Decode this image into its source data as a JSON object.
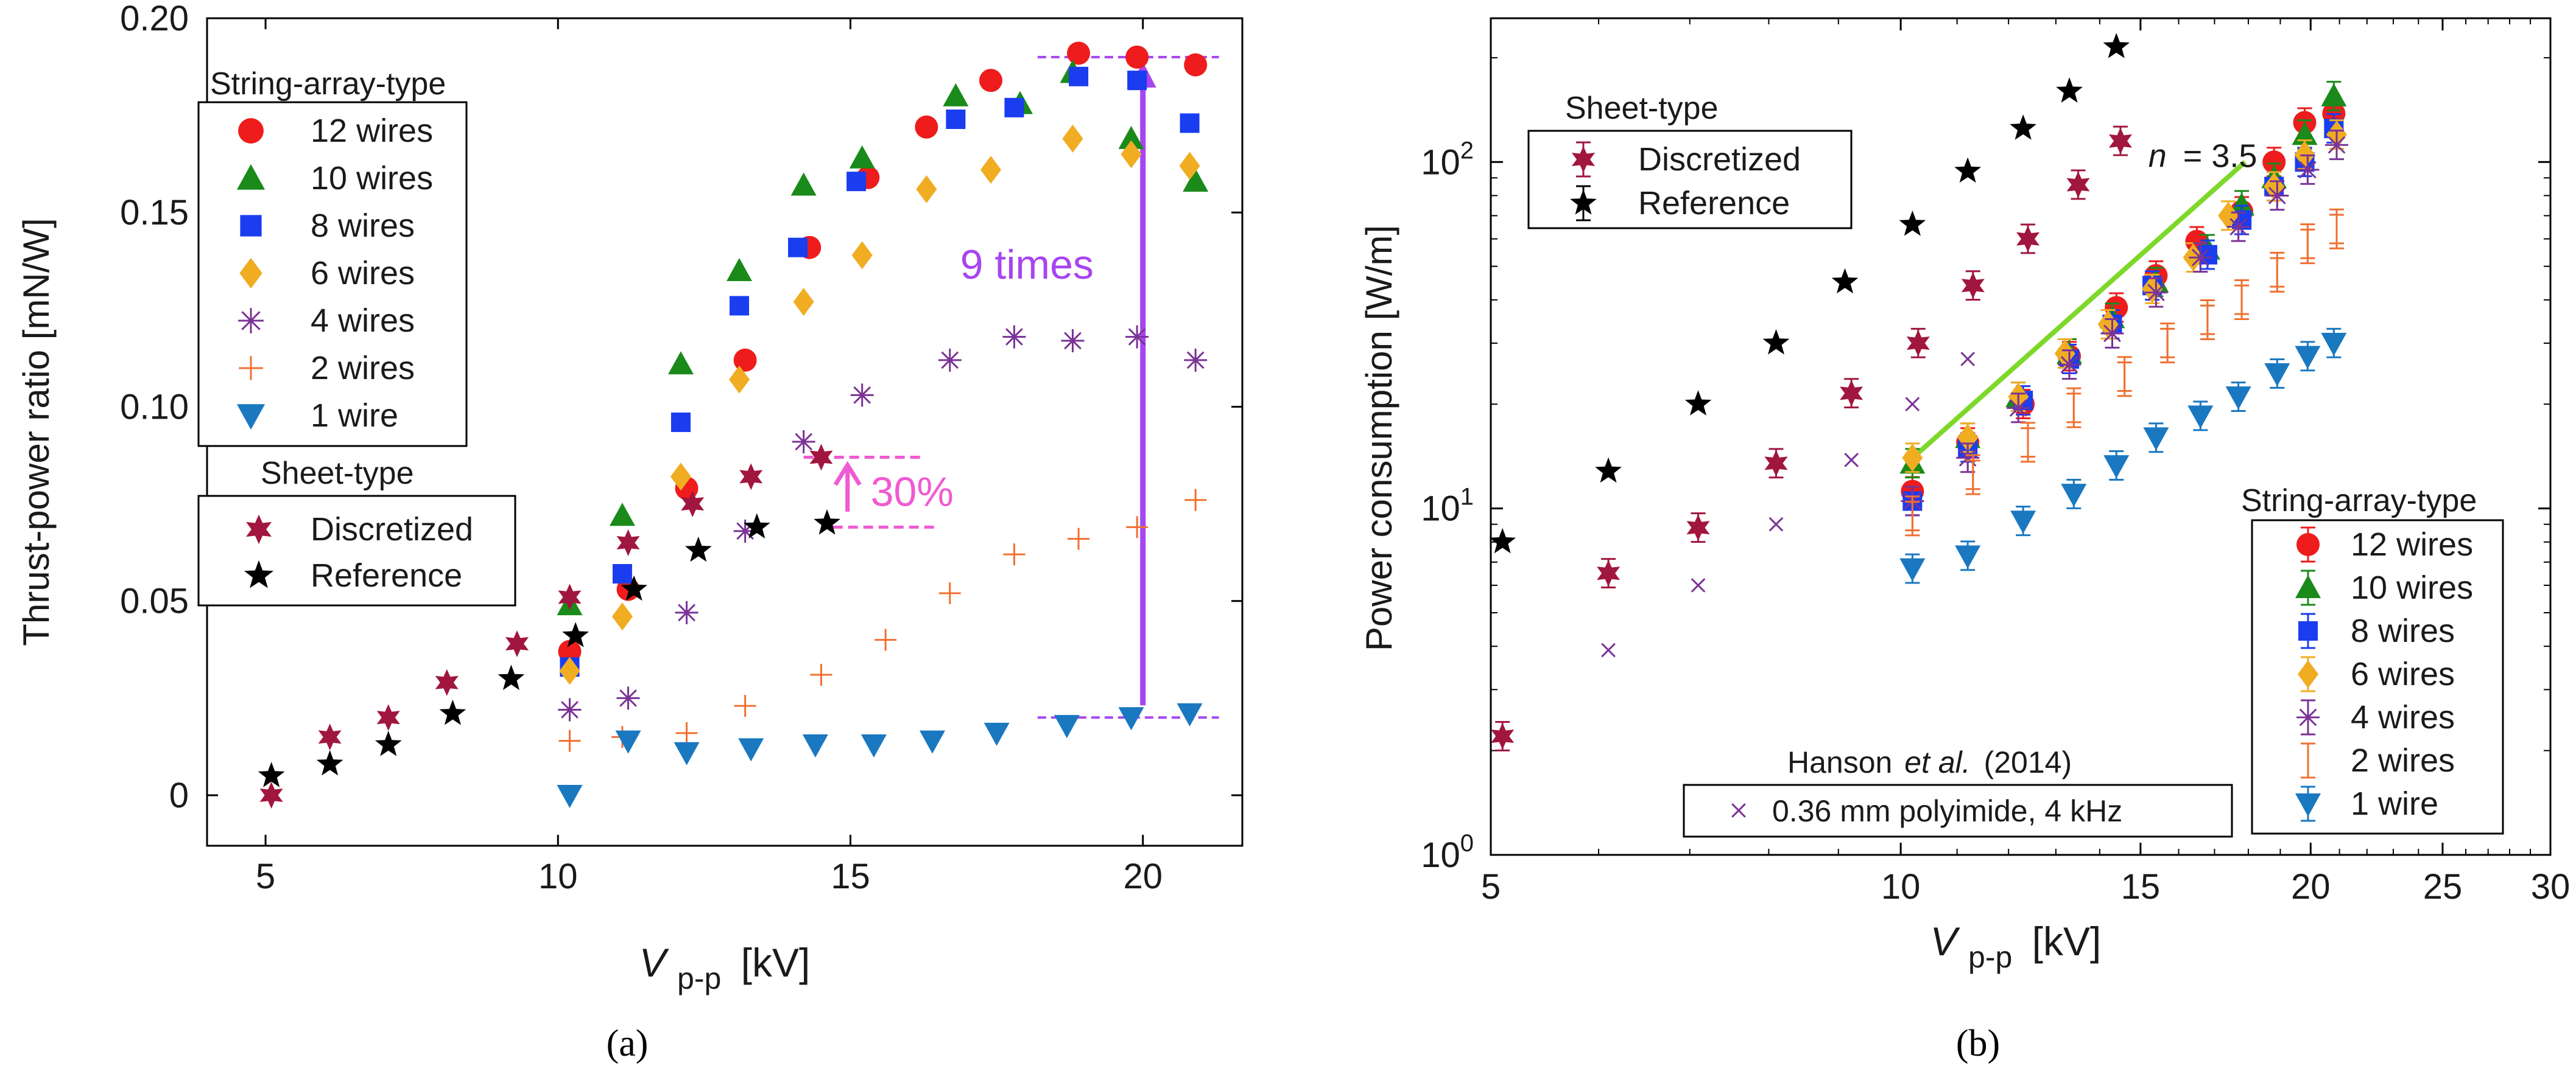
{
  "colors": {
    "w12": "#ee1c1c",
    "w10": "#1a8a1a",
    "w8": "#1a3df0",
    "w6": "#f0ad22",
    "w4": "#7a3296",
    "w2": "#f07030",
    "w1": "#1a78c0",
    "disc": "#a1163e",
    "ref": "#000000",
    "purple_arrow": "#a745f0",
    "pink": "#f05ad2",
    "green_fit": "#7ed82a",
    "hanson": "#7a3296"
  },
  "chart_data": [
    {
      "id": "a",
      "type": "scatter",
      "caption": "(a)",
      "ylabel": "Thrust-power ratio [mN/W]",
      "xlabel_main": "V",
      "xlabel_sub": "p-p",
      "xlabel_unit": "[kV]",
      "xlim": [
        4,
        21.7
      ],
      "ylim": [
        -0.013,
        0.2
      ],
      "xticks": [
        5,
        10,
        15,
        20
      ],
      "yticks": [
        0,
        0.05,
        0.1,
        0.15,
        0.2
      ],
      "ytick_labels": [
        "0",
        "0.05",
        "0.10",
        "0.15",
        "0.20"
      ],
      "legend_string_title": "String-array-type",
      "legend_sheet_title": "Sheet-type",
      "series": [
        {
          "name": "12 wires",
          "marker": "circle",
          "color_key": "w12",
          "points": [
            [
              10.2,
              0.037
            ],
            [
              11.2,
              0.053
            ],
            [
              12.2,
              0.079
            ],
            [
              13.2,
              0.112
            ],
            [
              14.3,
              0.141
            ],
            [
              15.3,
              0.159
            ],
            [
              16.3,
              0.172
            ],
            [
              17.4,
              0.184
            ],
            [
              18.9,
              0.191
            ],
            [
              19.9,
              0.19
            ],
            [
              20.9,
              0.188
            ]
          ]
        },
        {
          "name": "10 wires",
          "marker": "triangle-up",
          "color_key": "w10",
          "points": [
            [
              10.2,
              0.049
            ],
            [
              11.1,
              0.072
            ],
            [
              12.1,
              0.111
            ],
            [
              13.1,
              0.135
            ],
            [
              14.2,
              0.157
            ],
            [
              15.2,
              0.164
            ],
            [
              16.8,
              0.18
            ],
            [
              17.9,
              0.178
            ],
            [
              18.8,
              0.186
            ],
            [
              19.8,
              0.169
            ],
            [
              20.9,
              0.158
            ]
          ]
        },
        {
          "name": "8 wires",
          "marker": "square",
          "color_key": "w8",
          "points": [
            [
              10.2,
              0.033
            ],
            [
              11.1,
              0.057
            ],
            [
              12.1,
              0.096
            ],
            [
              13.1,
              0.126
            ],
            [
              14.1,
              0.141
            ],
            [
              15.1,
              0.158
            ],
            [
              16.8,
              0.174
            ],
            [
              17.8,
              0.177
            ],
            [
              18.9,
              0.185
            ],
            [
              19.9,
              0.184
            ],
            [
              20.8,
              0.173
            ]
          ]
        },
        {
          "name": "6 wires",
          "marker": "diamond",
          "color_key": "w6",
          "points": [
            [
              10.2,
              0.032
            ],
            [
              11.1,
              0.046
            ],
            [
              12.1,
              0.082
            ],
            [
              13.1,
              0.107
            ],
            [
              14.2,
              0.127
            ],
            [
              15.2,
              0.139
            ],
            [
              16.3,
              0.156
            ],
            [
              17.4,
              0.161
            ],
            [
              18.8,
              0.169
            ],
            [
              19.8,
              0.165
            ],
            [
              20.8,
              0.162
            ]
          ]
        },
        {
          "name": "4 wires",
          "marker": "asterisk",
          "color_key": "w4",
          "points": [
            [
              10.2,
              0.022
            ],
            [
              11.2,
              0.025
            ],
            [
              12.2,
              0.047
            ],
            [
              13.2,
              0.068
            ],
            [
              14.2,
              0.091
            ],
            [
              15.2,
              0.103
            ],
            [
              16.7,
              0.112
            ],
            [
              17.8,
              0.118
            ],
            [
              18.8,
              0.117
            ],
            [
              19.9,
              0.118
            ],
            [
              20.9,
              0.112
            ]
          ]
        },
        {
          "name": "2 wires",
          "marker": "plus",
          "color_key": "w2",
          "points": [
            [
              10.2,
              0.014
            ],
            [
              11.1,
              0.015
            ],
            [
              12.2,
              0.016
            ],
            [
              13.2,
              0.023
            ],
            [
              14.5,
              0.031
            ],
            [
              15.6,
              0.04
            ],
            [
              16.7,
              0.052
            ],
            [
              17.8,
              0.062
            ],
            [
              18.9,
              0.066
            ],
            [
              19.9,
              0.069
            ],
            [
              20.9,
              0.076
            ]
          ]
        },
        {
          "name": "1 wire",
          "marker": "triangle-down",
          "color_key": "w1",
          "points": [
            [
              10.2,
              0.0
            ],
            [
              11.2,
              0.014
            ],
            [
              12.2,
              0.011
            ],
            [
              13.3,
              0.012
            ],
            [
              14.4,
              0.013
            ],
            [
              15.4,
              0.013
            ],
            [
              16.4,
              0.014
            ],
            [
              17.5,
              0.016
            ],
            [
              18.7,
              0.018
            ],
            [
              19.8,
              0.02
            ],
            [
              20.8,
              0.021
            ]
          ]
        },
        {
          "name": "Discretized",
          "marker": "hexagram",
          "color_key": "disc",
          "points": [
            [
              5.1,
              0.0
            ],
            [
              6.1,
              0.015
            ],
            [
              7.1,
              0.02
            ],
            [
              8.1,
              0.029
            ],
            [
              9.3,
              0.039
            ],
            [
              10.2,
              0.051
            ],
            [
              11.2,
              0.065
            ],
            [
              12.3,
              0.075
            ],
            [
              13.3,
              0.082
            ],
            [
              14.5,
              0.087
            ]
          ]
        },
        {
          "name": "Reference",
          "marker": "star",
          "color_key": "ref",
          "points": [
            [
              5.1,
              0.005
            ],
            [
              6.1,
              0.008
            ],
            [
              7.1,
              0.013
            ],
            [
              8.2,
              0.021
            ],
            [
              9.2,
              0.03
            ],
            [
              10.3,
              0.041
            ],
            [
              11.3,
              0.053
            ],
            [
              12.4,
              0.063
            ],
            [
              13.4,
              0.069
            ],
            [
              14.6,
              0.07
            ]
          ]
        }
      ],
      "annotations": {
        "nine_times": "9 times",
        "thirty_pct": "30%"
      }
    },
    {
      "id": "b",
      "type": "scatter",
      "scale": "log-log",
      "caption": "(b)",
      "ylabel": "Power consumption [W/m]",
      "xlabel_main": "V",
      "xlabel_sub": "p-p",
      "xlabel_unit": "[kV]",
      "xlim": [
        5,
        30
      ],
      "ylim": [
        1,
        260
      ],
      "xticks": [
        5,
        10,
        15,
        20,
        25,
        30
      ],
      "yticks": [
        1,
        10,
        100
      ],
      "ytick_labels": [
        "10⁰",
        "10¹",
        "10²"
      ],
      "legend_string_title": "String-array-type",
      "legend_sheet_title": "Sheet-type",
      "hanson_title_pre": "Hanson",
      "hanson_title_etal": "et al.",
      "hanson_title_post": "(2014)",
      "hanson_label": "0.36 mm polyimide, 4 kHz",
      "fit_n": "n",
      "fit_value": "= 3.5",
      "fit_line": [
        [
          10.1,
          13.5
        ],
        [
          17.9,
          100
        ]
      ],
      "series": [
        {
          "name": "12 wires",
          "marker": "circle",
          "color_key": "w12",
          "points": [
            [
              10.2,
              11.2
            ],
            [
              11.2,
              15.5
            ],
            [
              12.3,
              20.0
            ],
            [
              13.3,
              27.5
            ],
            [
              14.4,
              38.0
            ],
            [
              15.4,
              47.0
            ],
            [
              16.5,
              59.0
            ],
            [
              17.8,
              72.0
            ],
            [
              18.8,
              100.0
            ],
            [
              19.8,
              130.0
            ],
            [
              20.8,
              138.0
            ]
          ]
        },
        {
          "name": "10 wires",
          "marker": "triangle-up",
          "color_key": "w10",
          "points": [
            [
              10.2,
              13.5
            ],
            [
              11.2,
              16.0
            ],
            [
              12.2,
              21.0
            ],
            [
              13.3,
              28.0
            ],
            [
              14.3,
              35.5
            ],
            [
              15.4,
              45.0
            ],
            [
              16.8,
              56.0
            ],
            [
              17.8,
              75.0
            ],
            [
              18.8,
              90.0
            ],
            [
              19.8,
              120.0
            ],
            [
              20.8,
              155.0
            ]
          ]
        },
        {
          "name": "8 wires",
          "marker": "square",
          "color_key": "w8",
          "points": [
            [
              10.2,
              10.5
            ],
            [
              11.2,
              15.0
            ],
            [
              12.3,
              20.5
            ],
            [
              13.3,
              27.0
            ],
            [
              14.3,
              34.0
            ],
            [
              15.3,
              44.0
            ],
            [
              16.8,
              54.0
            ],
            [
              17.8,
              68.0
            ],
            [
              18.8,
              85.0
            ],
            [
              19.8,
              100.0
            ],
            [
              20.8,
              125.0
            ]
          ]
        },
        {
          "name": "6 wires",
          "marker": "diamond",
          "color_key": "w6",
          "points": [
            [
              10.2,
              14.0
            ],
            [
              11.2,
              16.0
            ],
            [
              12.2,
              21.0
            ],
            [
              13.2,
              28.0
            ],
            [
              14.2,
              34.0
            ],
            [
              15.3,
              43.0
            ],
            [
              16.4,
              53.0
            ],
            [
              17.4,
              70.0
            ],
            [
              18.8,
              85.0
            ],
            [
              19.8,
              105.0
            ],
            [
              20.9,
              120.0
            ]
          ]
        },
        {
          "name": "4 wires",
          "marker": "asterisk",
          "color_key": "w4",
          "points": [
            [
              10.2,
              10.5
            ],
            [
              11.2,
              14.0
            ],
            [
              12.2,
              19.5
            ],
            [
              13.3,
              26.0
            ],
            [
              14.3,
              32.0
            ],
            [
              15.4,
              42.0
            ],
            [
              16.6,
              53.0
            ],
            [
              17.7,
              65.0
            ],
            [
              18.9,
              80.0
            ],
            [
              19.9,
              95.0
            ],
            [
              20.9,
              112.0
            ]
          ]
        },
        {
          "name": "2 wires",
          "marker": "plus",
          "color_key": "w2",
          "points": [
            [
              10.2,
              9.5
            ],
            [
              11.3,
              12.5
            ],
            [
              12.4,
              15.5
            ],
            [
              13.4,
              19.5
            ],
            [
              14.6,
              24.0
            ],
            [
              15.7,
              30.0
            ],
            [
              16.8,
              35.0
            ],
            [
              17.8,
              40.0
            ],
            [
              18.9,
              48.0
            ],
            [
              19.9,
              58.0
            ],
            [
              20.9,
              64.0
            ]
          ]
        },
        {
          "name": "1 wire",
          "marker": "triangle-down",
          "color_key": "w1",
          "points": [
            [
              10.2,
              6.7
            ],
            [
              11.2,
              7.3
            ],
            [
              12.3,
              9.2
            ],
            [
              13.4,
              11.0
            ],
            [
              14.4,
              13.3
            ],
            [
              15.4,
              16.0
            ],
            [
              16.6,
              18.5
            ],
            [
              17.7,
              21.0
            ],
            [
              18.9,
              24.5
            ],
            [
              19.9,
              27.5
            ],
            [
              20.8,
              30.0
            ]
          ]
        },
        {
          "name": "Discretized",
          "marker": "hexagram",
          "color_key": "disc",
          "points": [
            [
              5.1,
              2.2
            ],
            [
              6.1,
              6.5
            ],
            [
              7.1,
              8.8
            ],
            [
              8.1,
              13.5
            ],
            [
              9.2,
              21.5
            ],
            [
              10.3,
              30.0
            ],
            [
              11.3,
              44.0
            ],
            [
              12.4,
              60.0
            ],
            [
              13.5,
              86.0
            ],
            [
              14.5,
              115.0
            ]
          ]
        },
        {
          "name": "Reference",
          "marker": "star",
          "color_key": "ref",
          "points": [
            [
              5.1,
              8.0
            ],
            [
              6.1,
              12.8
            ],
            [
              7.1,
              20.0
            ],
            [
              8.1,
              30.0
            ],
            [
              9.1,
              45.0
            ],
            [
              10.2,
              66.0
            ],
            [
              11.2,
              94.0
            ],
            [
              12.3,
              125.0
            ],
            [
              13.3,
              160.0
            ],
            [
              14.4,
              215.0
            ]
          ]
        },
        {
          "name": "Hanson",
          "marker": "x",
          "color_key": "hanson",
          "points": [
            [
              6.1,
              3.9
            ],
            [
              7.1,
              6.0
            ],
            [
              8.1,
              9.0
            ],
            [
              9.2,
              13.8
            ],
            [
              10.2,
              20.0
            ],
            [
              11.2,
              27.0
            ]
          ]
        }
      ]
    }
  ]
}
